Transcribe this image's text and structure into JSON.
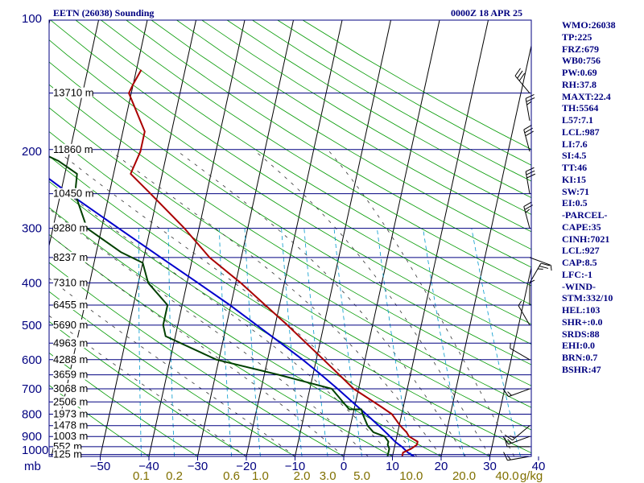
{
  "header": {
    "station": "EETN (26038) Sounding",
    "time": "0000Z 18 APR 25"
  },
  "indices": [
    "WMO:26038",
    "TP:225",
    "FRZ:679",
    "WB0:756",
    "PW:0.69",
    "RH:37.8",
    "MAXT:22.4",
    "TH:5564",
    "L57:7.1",
    "LCL:987",
    "LI:7.6",
    "SI:4.5",
    "TT:46",
    "KI:15",
    "SW:71",
    "EI:0.5",
    "-PARCEL-",
    "CAPE:35",
    "CINH:7021",
    "LCL:927",
    "CAP:8.5",
    "LFC:-1",
    "-WIND-",
    "STM:332/10",
    "HEL:103",
    "SHR+:0.0",
    "SRDS:88",
    "EHI:0.0",
    "BRN:0.7",
    "BSHR:47"
  ],
  "colors": {
    "frame": "#000080",
    "isobar": "#000080",
    "isotherm": "#000000",
    "dry_adiabat": "#009900",
    "moist_adiabat": "#333333",
    "mixing_ratio": "#0099cc",
    "temperature": "#aa0000",
    "dewpoint": "#004000",
    "parcel": "#0000cc",
    "mixing_ratio_labels": "#807000",
    "wind": "#000000"
  },
  "chart_data": {
    "type": "skew-t",
    "y_scale": "log",
    "pressure_range": [
      1000,
      100
    ],
    "temperature_range": [
      -50,
      50
    ],
    "pressure_labels": [
      100,
      200,
      300,
      400,
      500,
      600,
      700,
      800,
      900,
      1000
    ],
    "pressure_unit": "mb",
    "temperature_ticks": [
      -50,
      -40,
      -30,
      -20,
      -10,
      0,
      10,
      20,
      30,
      40
    ],
    "mixing_ratio_unit": "g/kg",
    "mixing_ratio_labels": [
      "0.1",
      "0.2",
      "0.6",
      "1.0",
      "2.0",
      "3.0",
      "5.0",
      "10.0",
      "20.0",
      "40.0"
    ],
    "heights": [
      {
        "p": 147,
        "label": "13710 m"
      },
      {
        "p": 198,
        "label": "11860 m"
      },
      {
        "p": 250,
        "label": "10450 m"
      },
      {
        "p": 300,
        "label": "9280 m"
      },
      {
        "p": 350,
        "label": "8237 m"
      },
      {
        "p": 400,
        "label": "7310 m"
      },
      {
        "p": 450,
        "label": "6455 m"
      },
      {
        "p": 500,
        "label": "5690 m"
      },
      {
        "p": 550,
        "label": "4963 m"
      },
      {
        "p": 600,
        "label": "4288 m"
      },
      {
        "p": 650,
        "label": "3659 m"
      },
      {
        "p": 700,
        "label": "3068 m"
      },
      {
        "p": 750,
        "label": "2506 m"
      },
      {
        "p": 800,
        "label": "1973 m"
      },
      {
        "p": 850,
        "label": "1478 m"
      },
      {
        "p": 900,
        "label": "1003 m"
      },
      {
        "p": 950,
        "label": "552 m"
      },
      {
        "p": 990,
        "label": "125 m"
      }
    ],
    "temperature": [
      {
        "p": 1000,
        "t": 12.0
      },
      {
        "p": 980,
        "t": 12.0
      },
      {
        "p": 960,
        "t": 13.5
      },
      {
        "p": 940,
        "t": 14.5
      },
      {
        "p": 925,
        "t": 14.5
      },
      {
        "p": 900,
        "t": 12.5
      },
      {
        "p": 880,
        "t": 11.8
      },
      {
        "p": 850,
        "t": 10.2
      },
      {
        "p": 800,
        "t": 8.0
      },
      {
        "p": 770,
        "t": 5.5
      },
      {
        "p": 700,
        "t": -1.0
      },
      {
        "p": 600,
        "t": -8.5
      },
      {
        "p": 500,
        "t": -17.5
      },
      {
        "p": 400,
        "t": -29.0
      },
      {
        "p": 350,
        "t": -36.5
      },
      {
        "p": 300,
        "t": -43.0
      },
      {
        "p": 250,
        "t": -51.5
      },
      {
        "p": 225,
        "t": -56.5
      },
      {
        "p": 200,
        "t": -55.5
      },
      {
        "p": 180,
        "t": -55.5
      },
      {
        "p": 147,
        "t": -60.5
      },
      {
        "p": 140,
        "t": -60.0
      },
      {
        "p": 130,
        "t": -59.0
      }
    ],
    "dewpoint": [
      {
        "p": 1000,
        "t": 9.0
      },
      {
        "p": 980,
        "t": 9.0
      },
      {
        "p": 960,
        "t": 9.0
      },
      {
        "p": 940,
        "t": 8.5
      },
      {
        "p": 925,
        "t": 8.5
      },
      {
        "p": 900,
        "t": 7.5
      },
      {
        "p": 880,
        "t": 5.0
      },
      {
        "p": 850,
        "t": 3.5
      },
      {
        "p": 800,
        "t": 2.0
      },
      {
        "p": 780,
        "t": 1.5
      },
      {
        "p": 780,
        "t": -1.0
      },
      {
        "p": 700,
        "t": -5.5
      },
      {
        "p": 650,
        "t": -17.0
      },
      {
        "p": 600,
        "t": -30.5
      },
      {
        "p": 530,
        "t": -42.0
      },
      {
        "p": 500,
        "t": -43.0
      },
      {
        "p": 450,
        "t": -43.0
      },
      {
        "p": 400,
        "t": -48.0
      },
      {
        "p": 360,
        "t": -50.0
      },
      {
        "p": 340,
        "t": -55.0
      },
      {
        "p": 300,
        "t": -63.0
      },
      {
        "p": 250,
        "t": -67.0
      },
      {
        "p": 225,
        "t": -67.5
      },
      {
        "p": 210,
        "t": -72.0
      },
      {
        "p": 200,
        "t": -76.5
      },
      {
        "p": 180,
        "t": -84.0
      },
      {
        "p": 160,
        "t": -91.0
      },
      {
        "p": 147,
        "t": -97.0
      },
      {
        "p": 130,
        "t": -100.5
      }
    ],
    "parcel": [
      {
        "p": 1000,
        "t": 14.5
      },
      {
        "p": 980,
        "t": 13.0
      },
      {
        "p": 950,
        "t": 11.5
      },
      {
        "p": 927,
        "t": 10.0
      },
      {
        "p": 900,
        "t": 8.6
      },
      {
        "p": 850,
        "t": 5.8
      },
      {
        "p": 800,
        "t": 2.7
      },
      {
        "p": 750,
        "t": -0.7
      },
      {
        "p": 700,
        "t": -4.3
      },
      {
        "p": 650,
        "t": -8.3
      },
      {
        "p": 600,
        "t": -12.8
      },
      {
        "p": 550,
        "t": -18.0
      },
      {
        "p": 500,
        "t": -23.8
      },
      {
        "p": 450,
        "t": -30.2
      },
      {
        "p": 400,
        "t": -37.8
      },
      {
        "p": 350,
        "t": -46.5
      },
      {
        "p": 300,
        "t": -56.5
      },
      {
        "p": 250,
        "t": -68.2
      },
      {
        "p": 200,
        "t": -81.8
      },
      {
        "p": 150,
        "t": -99.5
      },
      {
        "p": 110,
        "t": -118.0
      }
    ],
    "winds": [
      {
        "p": 1000,
        "dir": 260,
        "kt": 15
      },
      {
        "p": 950,
        "dir": 270,
        "kt": 10
      },
      {
        "p": 900,
        "dir": 250,
        "kt": 15
      },
      {
        "p": 850,
        "dir": 230,
        "kt": 15
      },
      {
        "p": 700,
        "dir": 250,
        "kt": 15
      },
      {
        "p": 600,
        "dir": 300,
        "kt": 5
      },
      {
        "p": 500,
        "dir": 330,
        "kt": 5
      },
      {
        "p": 450,
        "dir": 360,
        "kt": 5
      },
      {
        "p": 400,
        "dir": 30,
        "kt": 25
      },
      {
        "p": 350,
        "dir": 110,
        "kt": 5
      },
      {
        "p": 300,
        "dir": 345,
        "kt": 25
      },
      {
        "p": 250,
        "dir": 350,
        "kt": 30
      },
      {
        "p": 200,
        "dir": 345,
        "kt": 30
      },
      {
        "p": 170,
        "dir": 350,
        "kt": 25
      },
      {
        "p": 147,
        "dir": 320,
        "kt": 30
      }
    ]
  }
}
